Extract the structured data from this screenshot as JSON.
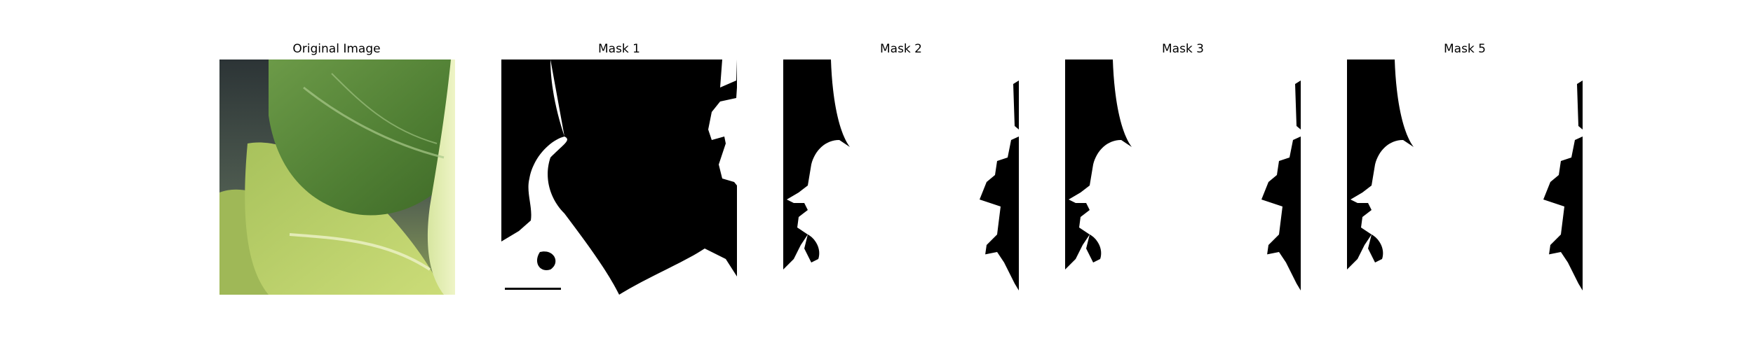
{
  "figure": {
    "panels": [
      {
        "title": "Original Image",
        "kind": "photo"
      },
      {
        "title": "Mask 1",
        "kind": "mask"
      },
      {
        "title": "Mask 2",
        "kind": "mask"
      },
      {
        "title": "Mask 3",
        "kind": "mask"
      },
      {
        "title": "Mask 5",
        "kind": "mask"
      }
    ]
  },
  "colors": {
    "mask_foreground": "#ffffff",
    "mask_background": "#000000",
    "leaf_dark": "#5f8f3c",
    "leaf_light": "#c7dc72",
    "backdrop": "#2e3436"
  }
}
